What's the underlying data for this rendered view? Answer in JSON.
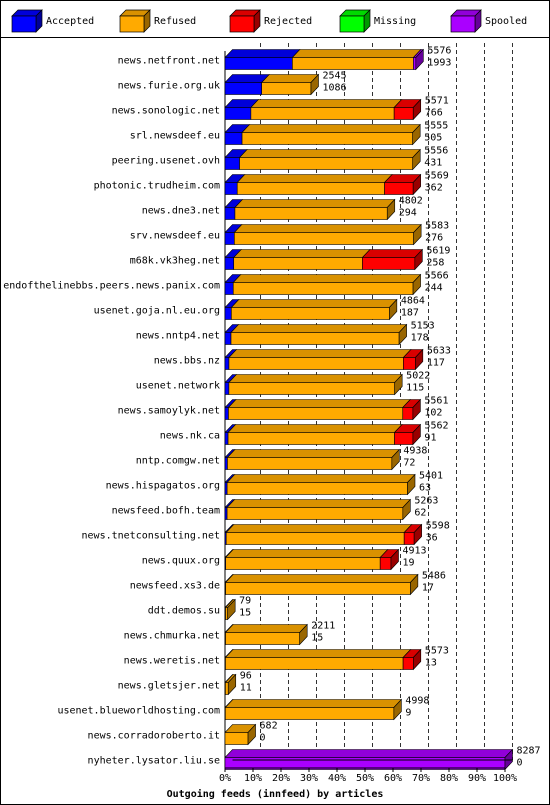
{
  "chart_data": {
    "type": "bar",
    "stacked": true,
    "orientation": "horizontal",
    "style": "3d",
    "title": "",
    "xlabel": "Outgoing feeds (innfeed) by articles",
    "ylabel": "",
    "xlim": [
      0,
      100
    ],
    "x_ticks": [
      "0%",
      "10%",
      "20%",
      "30%",
      "40%",
      "50%",
      "60%",
      "70%",
      "80%",
      "90%",
      "100%"
    ],
    "grid": "vertical dashed",
    "legend_position": "top",
    "series": [
      {
        "name": "Accepted",
        "color": "#0000ff"
      },
      {
        "name": "Refused",
        "color": "#ffaa00"
      },
      {
        "name": "Rejected",
        "color": "#ff0000"
      },
      {
        "name": "Missing",
        "color": "#00ff00"
      },
      {
        "name": "Spooled",
        "color": "#aa00ff"
      }
    ],
    "rows": [
      {
        "host": "news.netfront.net",
        "offered": "5576",
        "accepted": "1993",
        "seg": [
          1993,
          3583,
          0,
          0,
          72
        ]
      },
      {
        "host": "news.furie.org.uk",
        "offered": "2545",
        "accepted": "1086",
        "seg": [
          1086,
          1459,
          0,
          0,
          0
        ]
      },
      {
        "host": "news.sonologic.net",
        "offered": "5571",
        "accepted": "766",
        "seg": [
          766,
          4240,
          565,
          0,
          0
        ]
      },
      {
        "host": "srl.newsdeef.eu",
        "offered": "5555",
        "accepted": "505",
        "seg": [
          505,
          5050,
          0,
          0,
          0
        ]
      },
      {
        "host": "peering.usenet.ovh",
        "offered": "5556",
        "accepted": "431",
        "seg": [
          431,
          5125,
          0,
          0,
          0
        ]
      },
      {
        "host": "photonic.trudheim.com",
        "offered": "5569",
        "accepted": "362",
        "seg": [
          362,
          4360,
          847,
          0,
          0
        ]
      },
      {
        "host": "news.dne3.net",
        "offered": "4802",
        "accepted": "294",
        "seg": [
          294,
          4508,
          0,
          0,
          0
        ]
      },
      {
        "host": "srv.newsdeef.eu",
        "offered": "5583",
        "accepted": "276",
        "seg": [
          276,
          5307,
          0,
          0,
          0
        ]
      },
      {
        "host": "m68k.vk3heg.net",
        "offered": "5619",
        "accepted": "258",
        "seg": [
          258,
          3810,
          1551,
          0,
          0
        ]
      },
      {
        "host": "endofthelinebbs.peers.news.panix.com",
        "offered": "5566",
        "accepted": "244",
        "seg": [
          244,
          5322,
          0,
          0,
          0
        ]
      },
      {
        "host": "usenet.goja.nl.eu.org",
        "offered": "4864",
        "accepted": "187",
        "seg": [
          187,
          4677,
          0,
          0,
          0
        ]
      },
      {
        "host": "news.nntp4.net",
        "offered": "5153",
        "accepted": "178",
        "seg": [
          178,
          4975,
          0,
          0,
          0
        ]
      },
      {
        "host": "news.bbs.nz",
        "offered": "5633",
        "accepted": "117",
        "seg": [
          117,
          5163,
          353,
          0,
          0
        ]
      },
      {
        "host": "usenet.network",
        "offered": "5022",
        "accepted": "115",
        "seg": [
          115,
          4907,
          0,
          0,
          0
        ]
      },
      {
        "host": "news.samoylyk.net",
        "offered": "5561",
        "accepted": "102",
        "seg": [
          102,
          5159,
          300,
          0,
          0
        ]
      },
      {
        "host": "news.nk.ca",
        "offered": "5562",
        "accepted": "91",
        "seg": [
          91,
          4926,
          545,
          0,
          0
        ]
      },
      {
        "host": "nntp.comgw.net",
        "offered": "4938",
        "accepted": "72",
        "seg": [
          72,
          4866,
          0,
          0,
          0
        ]
      },
      {
        "host": "news.hispagatos.org",
        "offered": "5401",
        "accepted": "63",
        "seg": [
          63,
          5338,
          0,
          0,
          0
        ]
      },
      {
        "host": "newsfeed.bofh.team",
        "offered": "5263",
        "accepted": "62",
        "seg": [
          62,
          5201,
          0,
          0,
          0
        ]
      },
      {
        "host": "news.tnetconsulting.net",
        "offered": "5598",
        "accepted": "36",
        "seg": [
          36,
          5267,
          295,
          0,
          0
        ]
      },
      {
        "host": "news.quux.org",
        "offered": "4913",
        "accepted": "19",
        "seg": [
          19,
          4574,
          320,
          0,
          0
        ]
      },
      {
        "host": "newsfeed.xs3.de",
        "offered": "5486",
        "accepted": "17",
        "seg": [
          17,
          5469,
          0,
          0,
          0
        ]
      },
      {
        "host": "ddt.demos.su",
        "offered": "79",
        "accepted": "15",
        "seg": [
          15,
          64,
          0,
          0,
          0
        ]
      },
      {
        "host": "news.chmurka.net",
        "offered": "2211",
        "accepted": "15",
        "seg": [
          15,
          2196,
          0,
          0,
          0
        ]
      },
      {
        "host": "news.weretis.net",
        "offered": "5573",
        "accepted": "13",
        "seg": [
          13,
          5258,
          302,
          0,
          0
        ]
      },
      {
        "host": "news.gletsjer.net",
        "offered": "96",
        "accepted": "11",
        "seg": [
          11,
          85,
          0,
          0,
          0
        ]
      },
      {
        "host": "usenet.blueworldhosting.com",
        "offered": "4998",
        "accepted": "9",
        "seg": [
          9,
          4989,
          0,
          0,
          0
        ]
      },
      {
        "host": "news.corradoroberto.it",
        "offered": "682",
        "accepted": "0",
        "seg": [
          0,
          682,
          0,
          0,
          0
        ]
      },
      {
        "host": "nyheter.lysator.liu.se",
        "offered": "8287",
        "accepted": "0",
        "seg": [
          0,
          0,
          0,
          0,
          8287
        ]
      }
    ]
  }
}
